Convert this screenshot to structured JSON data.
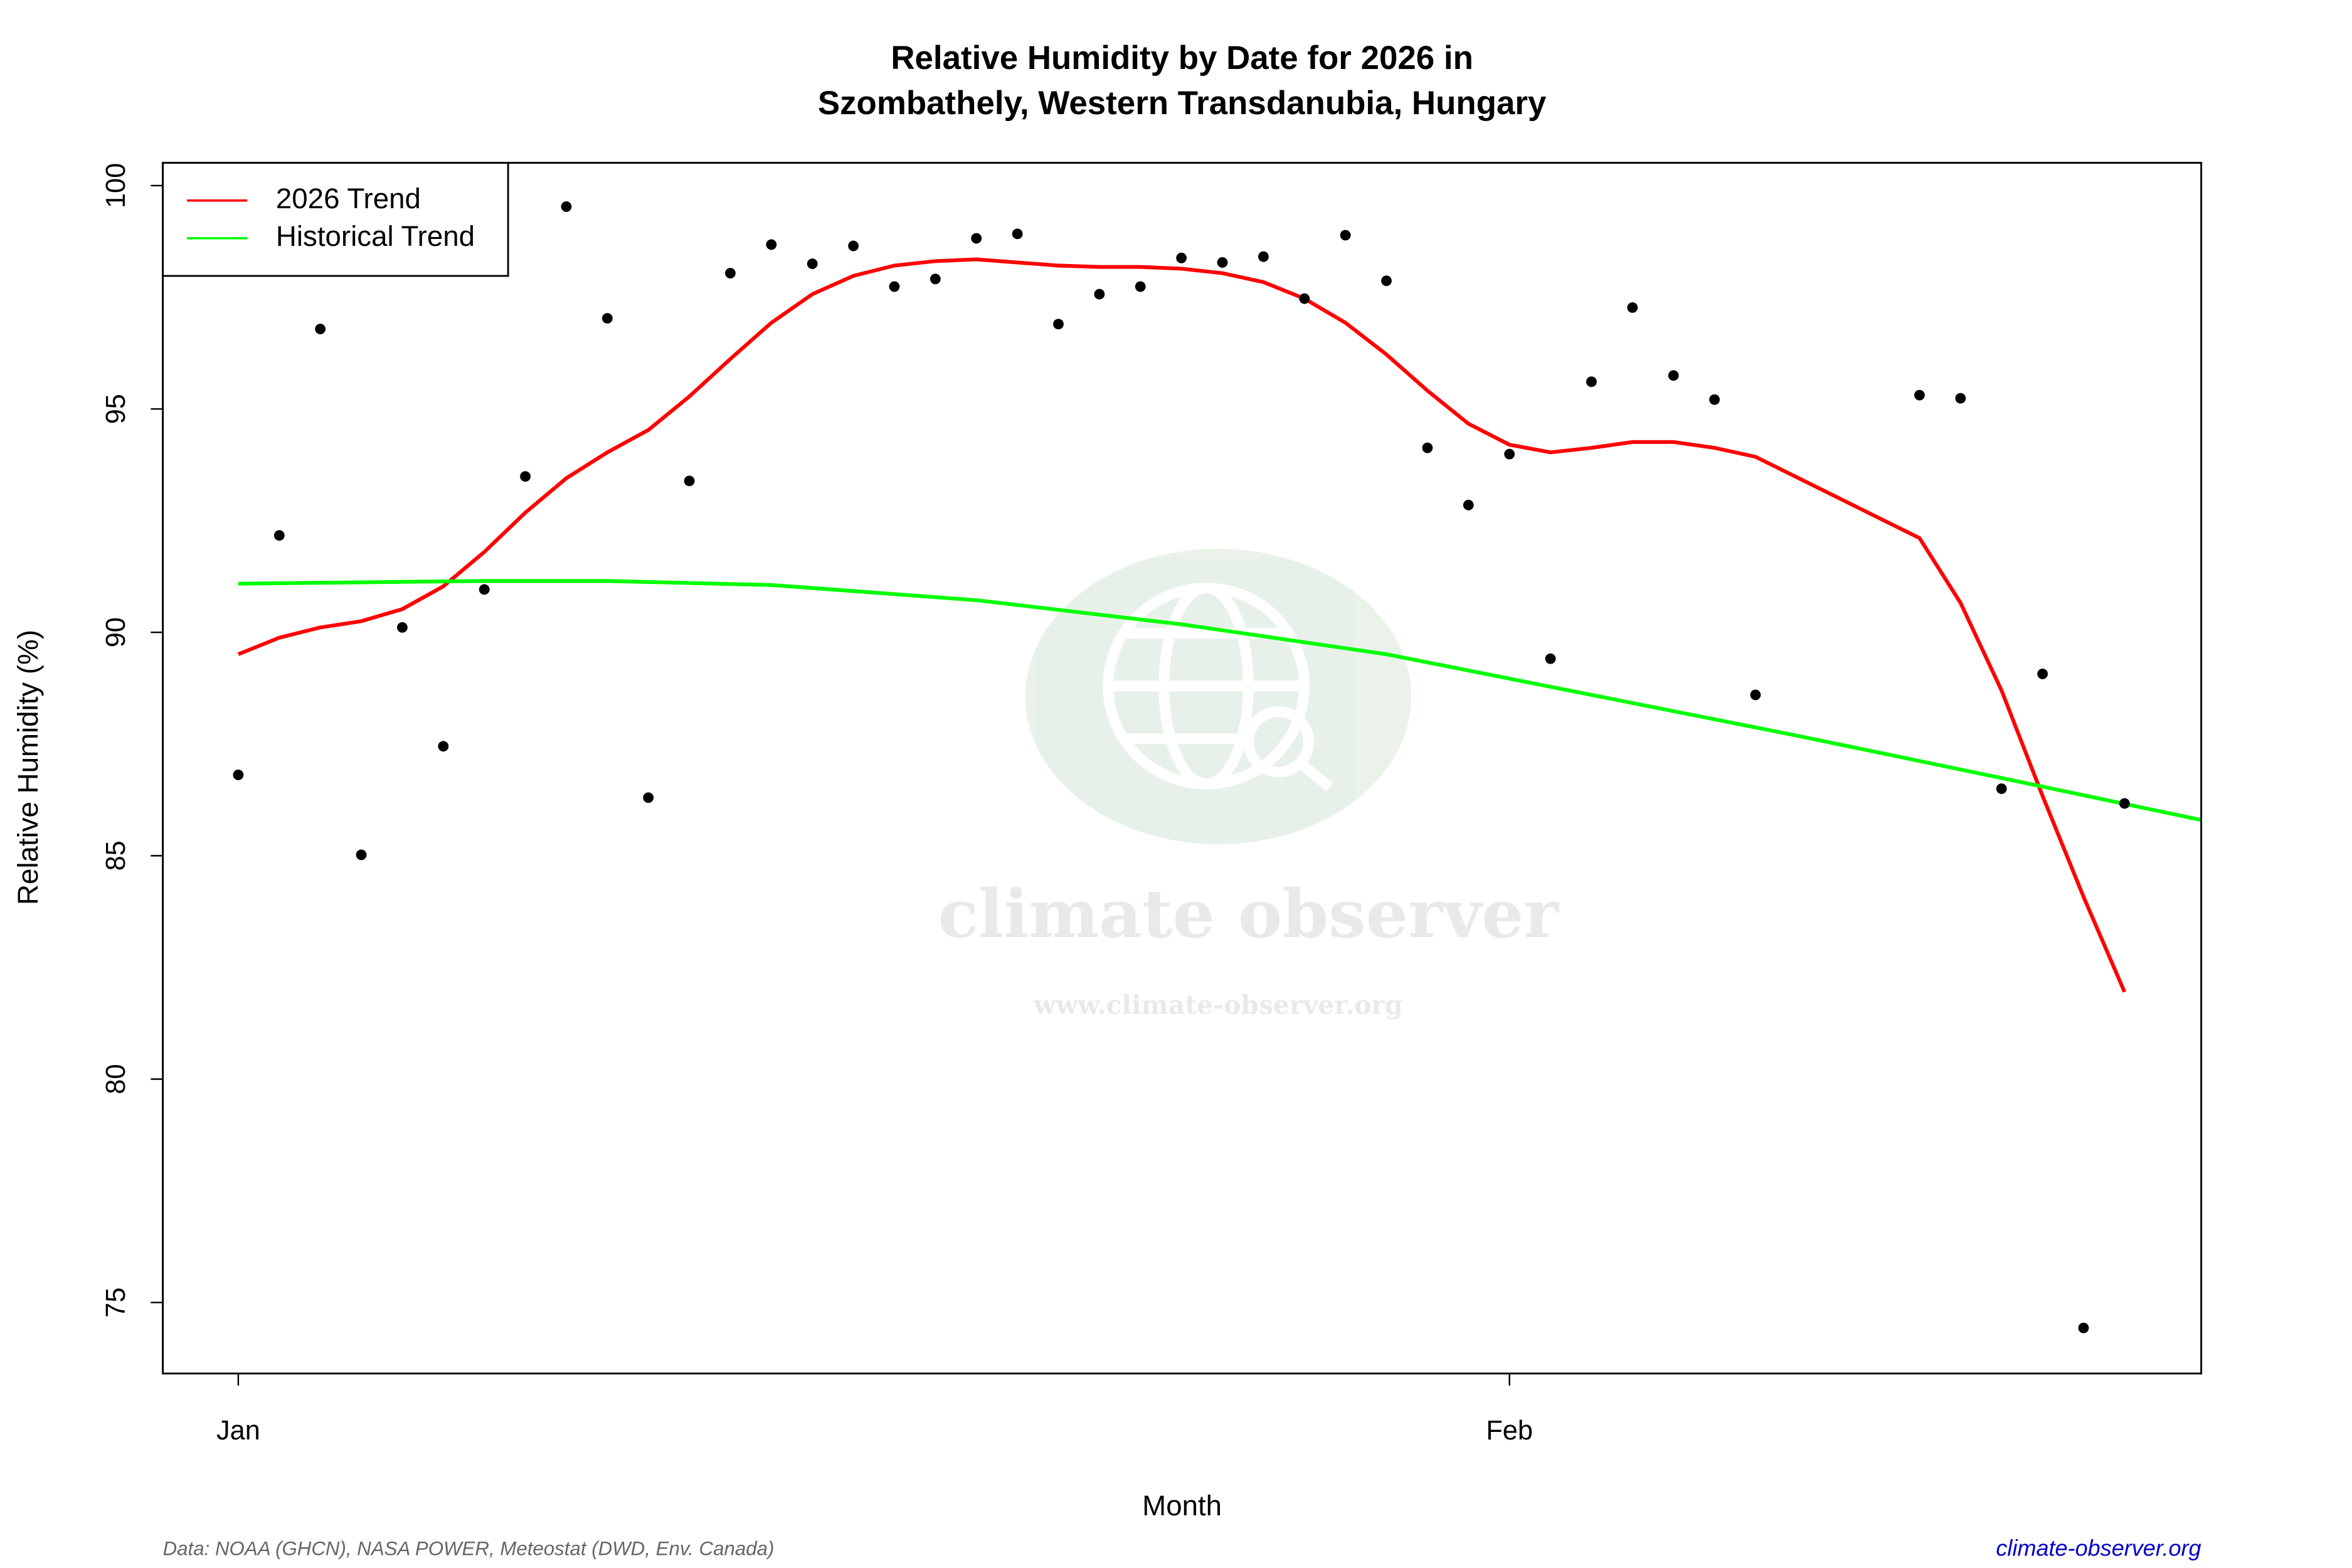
{
  "chart_data": {
    "type": "scatter",
    "title": [
      "Relative Humidity by Date for 2026 in",
      "Szombathely, Western Transdanubia, Hungary"
    ],
    "x_label": "Month",
    "y_label": "Relative Humidity (%)",
    "xlim": [
      -1.84,
      47.87
    ],
    "xticks": [
      {
        "value": 0,
        "label": "Jan"
      },
      {
        "value": 31,
        "label": "Feb"
      }
    ],
    "ylim": [
      73.41,
      100.51
    ],
    "yticks": [
      75,
      80,
      85,
      90,
      95,
      100
    ],
    "points": {
      "color": "#000000",
      "x": [
        0,
        1,
        2,
        3,
        4,
        5,
        6,
        7,
        8,
        9,
        10,
        11,
        12,
        13,
        14,
        15,
        16,
        17,
        18,
        19,
        20,
        21,
        22,
        23,
        24,
        25,
        26,
        27,
        28,
        29,
        30,
        31,
        32,
        33,
        34,
        35,
        36,
        37,
        41,
        42,
        43,
        44,
        45,
        46
      ],
      "values": [
        86.81,
        92.17,
        96.79,
        85.02,
        90.11,
        87.45,
        90.96,
        93.49,
        99.53,
        97.03,
        86.3,
        93.39,
        98.04,
        98.68,
        98.25,
        98.65,
        97.74,
        97.91,
        98.82,
        98.92,
        96.9,
        97.57,
        97.74,
        98.38,
        98.28,
        98.41,
        97.47,
        98.89,
        97.87,
        94.13,
        92.85,
        93.99,
        89.41,
        95.61,
        97.27,
        95.75,
        95.21,
        88.6,
        95.31,
        95.24,
        86.5,
        89.07,
        74.43,
        86.17
      ]
    },
    "series": [
      {
        "name": "2026 Trend",
        "color": "#ff0000",
        "x": [
          0,
          1,
          2,
          3,
          4,
          5,
          6,
          7,
          8,
          9,
          10,
          11,
          12,
          13,
          14,
          15,
          16,
          17,
          18,
          19,
          20,
          21,
          22,
          23,
          24,
          25,
          26,
          27,
          28,
          29,
          30,
          31,
          32,
          33,
          34,
          35,
          36,
          37,
          41,
          42,
          43,
          44,
          45,
          46
        ],
        "values": [
          89.51,
          89.88,
          90.11,
          90.25,
          90.52,
          91.03,
          91.8,
          92.68,
          93.45,
          94.03,
          94.53,
          95.28,
          96.12,
          96.93,
          97.57,
          97.98,
          98.21,
          98.31,
          98.35,
          98.28,
          98.21,
          98.18,
          98.18,
          98.14,
          98.04,
          97.84,
          97.47,
          96.93,
          96.22,
          95.41,
          94.67,
          94.2,
          94.03,
          94.13,
          94.26,
          94.26,
          94.13,
          93.93,
          92.11,
          90.66,
          88.7,
          86.34,
          84.08,
          81.95
        ]
      },
      {
        "name": "Historical Trend",
        "color": "#00ff00",
        "x": [
          0,
          3,
          6,
          9,
          13,
          18,
          23,
          28,
          33,
          38,
          43,
          47.87
        ],
        "values": [
          91.09,
          91.12,
          91.15,
          91.15,
          91.06,
          90.72,
          90.18,
          89.51,
          88.6,
          87.69,
          86.74,
          85.8
        ]
      }
    ],
    "legend": "topleft",
    "watermark": [
      "climate observer",
      "www.climate-observer.org"
    ],
    "source": "Data: NOAA (GHCN), NASA POWER, Meteostat (DWD, Env. Canada)",
    "website": "climate-observer.org"
  }
}
